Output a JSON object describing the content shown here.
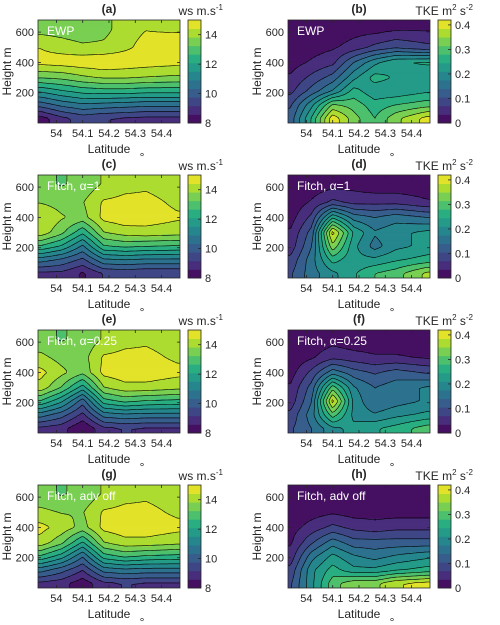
{
  "colormap": [
    "#440154",
    "#472d7b",
    "#3b528b",
    "#2c728e",
    "#21918c",
    "#28ae80",
    "#5ec962",
    "#addc30",
    "#fde725"
  ],
  "chart_data": [
    {
      "id": "a",
      "type": "contour",
      "panel_label": "(a)",
      "run_label": "EWP",
      "variable": "wind speed",
      "x": [
        53.94,
        54.02,
        54.1,
        54.18,
        54.26,
        54.34,
        54.46
      ],
      "y": [
        30,
        120,
        210,
        300,
        400,
        500,
        620
      ],
      "z": [
        [
          8.3,
          9.0,
          9.4,
          9.2,
          9.1,
          9.0,
          9.0
        ],
        [
          10.0,
          10.5,
          10.8,
          10.7,
          10.6,
          10.5,
          10.5
        ],
        [
          11.6,
          12.0,
          12.3,
          12.4,
          12.4,
          12.3,
          12.3
        ],
        [
          13.3,
          13.4,
          13.7,
          13.9,
          13.9,
          13.8,
          13.7
        ],
        [
          14.6,
          14.7,
          14.8,
          14.9,
          14.8,
          14.7,
          14.6
        ],
        [
          14.4,
          14.2,
          14.0,
          14.0,
          14.3,
          14.6,
          14.9
        ],
        [
          13.6,
          13.5,
          13.3,
          13.6,
          14.2,
          14.4,
          14.3
        ]
      ],
      "clim": [
        8,
        15
      ],
      "cb_ticks": [
        8,
        10,
        12,
        14
      ],
      "cb_unit": {
        "base": "ws m.s",
        "sup": "-1"
      },
      "xlabel": "Latitude",
      "x_unit": "°",
      "ylabel": "Height m",
      "xticks": [
        "54",
        "54.1",
        "54.2",
        "54.3",
        "54.4"
      ],
      "yticks": [
        "200",
        "400",
        "600"
      ]
    },
    {
      "id": "b",
      "type": "contour",
      "panel_label": "(b)",
      "run_label": "EWP",
      "variable": "TKE",
      "x": [
        53.94,
        54.02,
        54.1,
        54.18,
        54.26,
        54.34,
        54.46
      ],
      "y": [
        30,
        120,
        210,
        300,
        400,
        500,
        620
      ],
      "z": [
        [
          0.12,
          0.25,
          0.41,
          0.33,
          0.28,
          0.34,
          0.4
        ],
        [
          0.1,
          0.2,
          0.32,
          0.3,
          0.26,
          0.28,
          0.3
        ],
        [
          0.06,
          0.12,
          0.18,
          0.26,
          0.22,
          0.22,
          0.24
        ],
        [
          0.04,
          0.08,
          0.12,
          0.2,
          0.26,
          0.24,
          0.22
        ],
        [
          0.02,
          0.04,
          0.06,
          0.14,
          0.2,
          0.24,
          0.25
        ],
        [
          0.01,
          0.02,
          0.03,
          0.05,
          0.08,
          0.1,
          0.08
        ],
        [
          0.0,
          0.01,
          0.01,
          0.02,
          0.02,
          0.03,
          0.03
        ]
      ],
      "clim": [
        0,
        0.42
      ],
      "cb_ticks": [
        0,
        0.1,
        0.2,
        0.3,
        0.4
      ],
      "cb_unit": {
        "base": "TKE m",
        "sup": "2",
        "mid": " s",
        "sup2": "-2"
      },
      "xlabel": "Latitude",
      "x_unit": "°",
      "ylabel": "Height m",
      "xticks": [
        "54",
        "54.1",
        "54.2",
        "54.3",
        "54.4"
      ],
      "yticks": [
        "200",
        "400",
        "600"
      ]
    },
    {
      "id": "c",
      "type": "contour",
      "panel_label": "(c)",
      "run_label": "Fitch, α=1",
      "variable": "wind speed",
      "x": [
        53.94,
        54.02,
        54.1,
        54.18,
        54.26,
        54.34,
        54.46
      ],
      "y": [
        30,
        120,
        210,
        300,
        400,
        500,
        620
      ],
      "z": [
        [
          9.0,
          9.0,
          8.5,
          9.2,
          9.3,
          9.2,
          9.2
        ],
        [
          10.6,
          10.2,
          9.6,
          10.8,
          10.9,
          10.8,
          10.8
        ],
        [
          12.6,
          12.0,
          10.8,
          12.6,
          12.8,
          12.7,
          12.6
        ],
        [
          14.2,
          13.4,
          12.2,
          13.8,
          14.1,
          14.2,
          14.1
        ],
        [
          14.4,
          13.9,
          13.6,
          14.6,
          14.8,
          14.7,
          14.5
        ],
        [
          13.8,
          13.6,
          13.8,
          14.5,
          14.6,
          14.6,
          14.3
        ],
        [
          13.4,
          13.2,
          13.4,
          13.9,
          14.2,
          14.3,
          14.1
        ]
      ],
      "clim": [
        8,
        15
      ],
      "cb_ticks": [
        8,
        10,
        12,
        14
      ],
      "cb_unit": {
        "base": "ws m.s",
        "sup": "-1"
      },
      "xlabel": "Latitude",
      "x_unit": "°",
      "ylabel": "Height m",
      "xticks": [
        "54",
        "54.1",
        "54.2",
        "54.3",
        "54.4"
      ],
      "yticks": [
        "200",
        "400",
        "600"
      ]
    },
    {
      "id": "d",
      "type": "contour",
      "panel_label": "(d)",
      "run_label": "Fitch, α=1",
      "variable": "TKE",
      "x": [
        53.94,
        54.02,
        54.1,
        54.18,
        54.26,
        54.34,
        54.46
      ],
      "y": [
        30,
        120,
        210,
        300,
        400,
        500,
        620
      ],
      "z": [
        [
          0.1,
          0.16,
          0.2,
          0.24,
          0.28,
          0.3,
          0.36
        ],
        [
          0.08,
          0.16,
          0.26,
          0.22,
          0.22,
          0.24,
          0.26
        ],
        [
          0.05,
          0.14,
          0.34,
          0.22,
          0.16,
          0.2,
          0.22
        ],
        [
          0.04,
          0.12,
          0.4,
          0.24,
          0.18,
          0.2,
          0.22
        ],
        [
          0.02,
          0.08,
          0.24,
          0.16,
          0.14,
          0.16,
          0.14
        ],
        [
          0.01,
          0.04,
          0.08,
          0.06,
          0.06,
          0.06,
          0.04
        ],
        [
          0.0,
          0.01,
          0.02,
          0.02,
          0.01,
          0.01,
          0.01
        ]
      ],
      "clim": [
        0,
        0.42
      ],
      "cb_ticks": [
        0,
        0.1,
        0.2,
        0.3,
        0.4
      ],
      "cb_unit": {
        "base": "TKE m",
        "sup": "2",
        "mid": " s",
        "sup2": "-2"
      },
      "xlabel": "Latitude",
      "x_unit": "°",
      "ylabel": "Height m",
      "xticks": [
        "54",
        "54.1",
        "54.2",
        "54.3",
        "54.4"
      ],
      "yticks": [
        "200",
        "400",
        "600"
      ]
    },
    {
      "id": "e",
      "type": "contour",
      "panel_label": "(e)",
      "run_label": "Fitch, α=0.25",
      "variable": "wind speed",
      "x": [
        53.94,
        54.02,
        54.1,
        54.18,
        54.26,
        54.34,
        54.46
      ],
      "y": [
        30,
        120,
        210,
        300,
        400,
        500,
        620
      ],
      "z": [
        [
          9.0,
          8.8,
          8.0,
          9.0,
          9.2,
          9.1,
          9.1
        ],
        [
          10.6,
          10.0,
          9.0,
          10.6,
          10.8,
          10.7,
          10.7
        ],
        [
          12.6,
          11.6,
          10.0,
          12.4,
          12.8,
          12.6,
          12.5
        ],
        [
          14.2,
          13.2,
          11.8,
          13.8,
          14.2,
          14.2,
          14.0
        ],
        [
          14.6,
          14.0,
          13.4,
          14.6,
          14.8,
          14.8,
          14.6
        ],
        [
          14.0,
          13.6,
          13.6,
          14.5,
          14.6,
          14.6,
          14.3
        ],
        [
          13.4,
          13.2,
          13.4,
          13.9,
          14.2,
          14.3,
          14.1
        ]
      ],
      "clim": [
        8,
        15
      ],
      "cb_ticks": [
        8,
        10,
        12,
        14
      ],
      "cb_unit": {
        "base": "ws m.s",
        "sup": "-1"
      },
      "xlabel": "Latitude",
      "x_unit": "°",
      "ylabel": "Height m",
      "xticks": [
        "54",
        "54.1",
        "54.2",
        "54.3",
        "54.4"
      ],
      "yticks": [
        "200",
        "400",
        "600"
      ]
    },
    {
      "id": "f",
      "type": "contour",
      "panel_label": "(f)",
      "run_label": "Fitch, α=0.25",
      "variable": "TKE",
      "x": [
        53.94,
        54.02,
        54.1,
        54.18,
        54.26,
        54.34,
        54.46
      ],
      "y": [
        30,
        120,
        210,
        300,
        400,
        500,
        620
      ],
      "z": [
        [
          0.1,
          0.14,
          0.2,
          0.22,
          0.24,
          0.26,
          0.3
        ],
        [
          0.08,
          0.16,
          0.3,
          0.2,
          0.18,
          0.2,
          0.22
        ],
        [
          0.05,
          0.14,
          0.4,
          0.2,
          0.14,
          0.16,
          0.18
        ],
        [
          0.04,
          0.12,
          0.3,
          0.18,
          0.14,
          0.16,
          0.18
        ],
        [
          0.02,
          0.08,
          0.16,
          0.12,
          0.1,
          0.12,
          0.1
        ],
        [
          0.01,
          0.03,
          0.06,
          0.05,
          0.04,
          0.04,
          0.03
        ],
        [
          0.0,
          0.01,
          0.02,
          0.01,
          0.01,
          0.01,
          0.01
        ]
      ],
      "clim": [
        0,
        0.42
      ],
      "cb_ticks": [
        0,
        0.1,
        0.2,
        0.3,
        0.4
      ],
      "cb_unit": {
        "base": "TKE m",
        "sup": "2",
        "mid": " s",
        "sup2": "-2"
      },
      "xlabel": "Latitude",
      "x_unit": "°",
      "ylabel": "Height m",
      "xticks": [
        "54",
        "54.1",
        "54.2",
        "54.3",
        "54.4"
      ],
      "yticks": [
        "200",
        "400",
        "600"
      ]
    },
    {
      "id": "g",
      "type": "contour",
      "panel_label": "(g)",
      "run_label": "Fitch, adv off",
      "variable": "wind speed",
      "x": [
        53.94,
        54.02,
        54.1,
        54.18,
        54.26,
        54.34,
        54.46
      ],
      "y": [
        30,
        120,
        210,
        300,
        400,
        500,
        620
      ],
      "z": [
        [
          9.0,
          8.8,
          8.2,
          9.0,
          9.2,
          9.1,
          9.1
        ],
        [
          10.6,
          10.0,
          9.2,
          10.6,
          10.8,
          10.7,
          10.7
        ],
        [
          12.6,
          11.8,
          10.4,
          12.4,
          12.8,
          12.6,
          12.5
        ],
        [
          14.2,
          13.4,
          12.0,
          13.8,
          14.2,
          14.2,
          14.0
        ],
        [
          14.6,
          14.2,
          13.6,
          14.6,
          14.8,
          14.8,
          14.6
        ],
        [
          14.0,
          13.8,
          13.8,
          14.5,
          14.6,
          14.6,
          14.3
        ],
        [
          13.4,
          13.2,
          13.4,
          13.9,
          14.2,
          14.3,
          14.1
        ]
      ],
      "clim": [
        8,
        15
      ],
      "cb_ticks": [
        8,
        10,
        12,
        14
      ],
      "cb_unit": {
        "base": "ws m.s",
        "sup": "-1"
      },
      "xlabel": "Latitude",
      "x_unit": "°",
      "ylabel": "Height m",
      "xticks": [
        "54",
        "54.1",
        "54.2",
        "54.3",
        "54.4"
      ],
      "yticks": [
        "200",
        "400",
        "600"
      ]
    },
    {
      "id": "h",
      "type": "contour",
      "panel_label": "(h)",
      "run_label": "Fitch, adv off",
      "variable": "TKE",
      "x": [
        53.94,
        54.02,
        54.1,
        54.18,
        54.26,
        54.34,
        54.46
      ],
      "y": [
        30,
        120,
        210,
        300,
        400,
        500,
        620
      ],
      "z": [
        [
          0.1,
          0.2,
          0.3,
          0.34,
          0.34,
          0.38,
          0.4
        ],
        [
          0.08,
          0.2,
          0.26,
          0.22,
          0.22,
          0.24,
          0.26
        ],
        [
          0.05,
          0.16,
          0.22,
          0.18,
          0.16,
          0.18,
          0.2
        ],
        [
          0.03,
          0.1,
          0.16,
          0.12,
          0.12,
          0.12,
          0.12
        ],
        [
          0.02,
          0.05,
          0.08,
          0.06,
          0.05,
          0.06,
          0.06
        ],
        [
          0.01,
          0.02,
          0.03,
          0.02,
          0.02,
          0.02,
          0.02
        ],
        [
          0.0,
          0.0,
          0.01,
          0.01,
          0.01,
          0.01,
          0.01
        ]
      ],
      "clim": [
        0,
        0.42
      ],
      "cb_ticks": [
        0,
        0.1,
        0.2,
        0.3,
        0.4
      ],
      "cb_unit": {
        "base": "TKE m",
        "sup": "2",
        "mid": " s",
        "sup2": "-2"
      },
      "xlabel": "Latitude",
      "x_unit": "°",
      "ylabel": "Height m",
      "xticks": [
        "54",
        "54.1",
        "54.2",
        "54.3",
        "54.4"
      ],
      "yticks": [
        "200",
        "400",
        "600"
      ]
    }
  ]
}
